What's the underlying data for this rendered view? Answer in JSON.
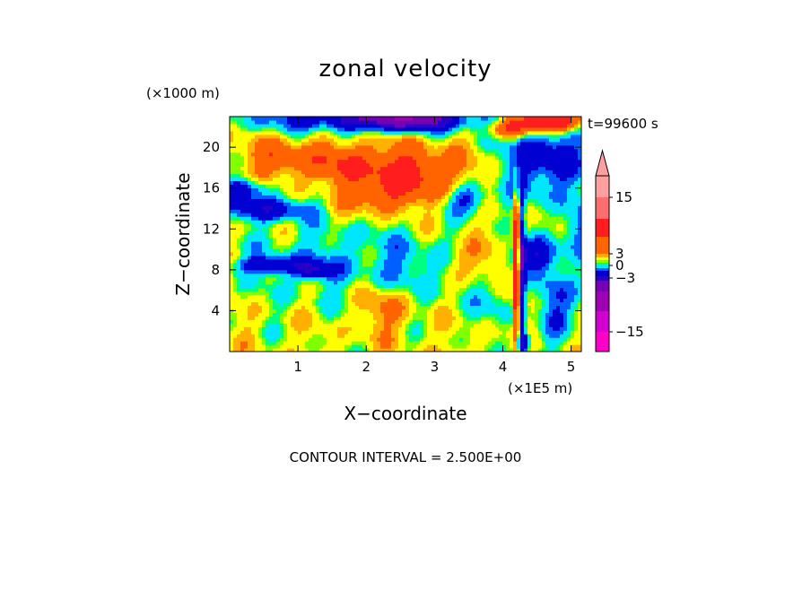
{
  "chart_data": {
    "type": "heatmap",
    "title": "zonal velocity",
    "xlabel": "X−coordinate",
    "ylabel": "Z−coordinate",
    "x_unit": "(×1E5 m)",
    "y_unit": "(×1000 m)",
    "time_label": "t=99600 s",
    "footer": "CONTOUR INTERVAL = 2.500E+00",
    "xlim": [
      0,
      5.15
    ],
    "ylim": [
      0,
      23
    ],
    "x_ticks": [
      "1",
      "2",
      "3",
      "4",
      "5"
    ],
    "x_tick_values": [
      1,
      2,
      3,
      4,
      5
    ],
    "y_ticks": [
      "4",
      "8",
      "12",
      "16",
      "20"
    ],
    "y_tick_values": [
      4,
      8,
      12,
      16,
      20
    ],
    "contour_interval": 2.5,
    "colorbar": {
      "tick_labels": [
        "15",
        "3",
        "0",
        "−3",
        "−15"
      ],
      "tick_values": [
        15,
        3,
        0,
        -3,
        -15
      ],
      "extend_max": true,
      "levels": [
        {
          "range": [
            -20,
            -17.5
          ],
          "color": "#ff00c8"
        },
        {
          "range": [
            -17.5,
            -15
          ],
          "color": "#d200d2"
        },
        {
          "range": [
            -15,
            -12.5
          ],
          "color": "#a000b4"
        },
        {
          "range": [
            -12.5,
            -7.5
          ],
          "color": "#7800b4"
        },
        {
          "range": [
            -7.5,
            -5
          ],
          "color": "#2800c8"
        },
        {
          "range": [
            -5,
            -2.5
          ],
          "color": "#0000d2"
        },
        {
          "range": [
            -2.5,
            -1.5
          ],
          "color": "#0060ff"
        },
        {
          "range": [
            -1.5,
            -0.5
          ],
          "color": "#00e6ff"
        },
        {
          "range": [
            -0.5,
            0
          ],
          "color": "#00ff80"
        },
        {
          "range": [
            0,
            0.5
          ],
          "color": "#80ff00"
        },
        {
          "range": [
            0.5,
            1.5
          ],
          "color": "#ffff00"
        },
        {
          "range": [
            1.5,
            2.5
          ],
          "color": "#ffb000"
        },
        {
          "range": [
            2.5,
            5
          ],
          "color": "#ff6400"
        },
        {
          "range": [
            5,
            10
          ],
          "color": "#ff1e1e"
        },
        {
          "range": [
            10,
            15
          ],
          "color": "#ff6e6e"
        },
        {
          "range": [
            15,
            20
          ],
          "color": "#ffa0a0"
        }
      ]
    }
  }
}
